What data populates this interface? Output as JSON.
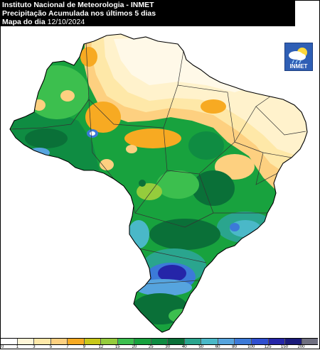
{
  "header": {
    "line1": "Instituto Nacional de Meteorologia - INMET",
    "line2": "Precipitação Acumulada nos últimos 5 dias",
    "line3_prefix": "Mapa do dia",
    "line3_date": "12/10/2024"
  },
  "logo": {
    "text": "INMET",
    "icon": "cloud-sun-rain-icon"
  },
  "legend": {
    "labels": [
      "0",
      "1",
      "3",
      "5",
      "7",
      "9",
      "12",
      "15",
      "20",
      "25",
      "30",
      "40",
      "50",
      "60",
      "80",
      "100",
      "125",
      "150",
      "200"
    ],
    "colors": [
      "#ffffff",
      "#fff6d8",
      "#fee8a8",
      "#fdd080",
      "#f7aa22",
      "#c8c81a",
      "#95cc3c",
      "#3cbf4e",
      "#18a23e",
      "#0f8c42",
      "#0a7038",
      "#2aa58e",
      "#4ab8c8",
      "#56a4de",
      "#3c7ad8",
      "#2f4fd0",
      "#2525a8",
      "#1a1a7a",
      "#6f6f80"
    ]
  },
  "colors": {
    "land_border": "#000000",
    "state_border": "#333333",
    "dry": "#fff2cc",
    "orange": "#f7a928",
    "green": "#0f8c42",
    "teal": "#2aa58e",
    "blue": "#3c7ad8",
    "darkblue": "#2525a8"
  }
}
